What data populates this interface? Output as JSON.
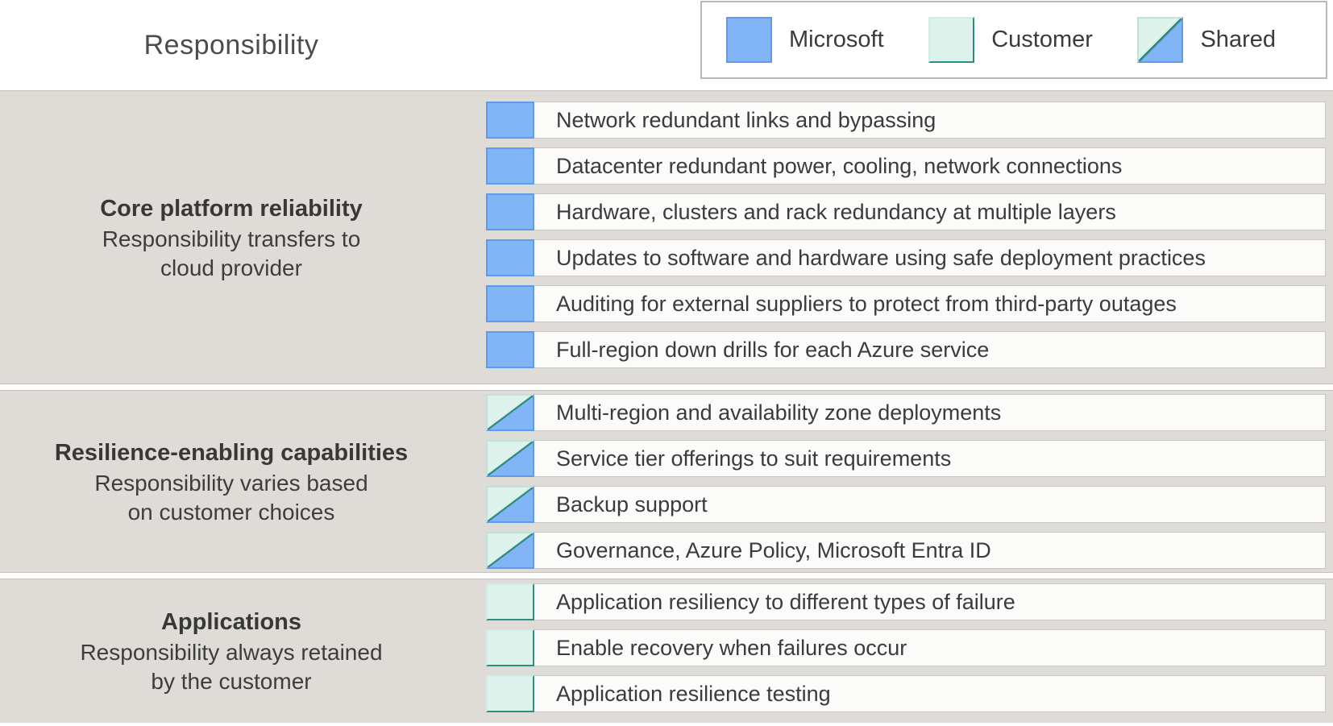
{
  "title": "Responsibility",
  "legend": {
    "items": [
      {
        "label": "Microsoft",
        "type": "microsoft"
      },
      {
        "label": "Customer",
        "type": "customer"
      },
      {
        "label": "Shared",
        "type": "shared"
      }
    ]
  },
  "colors": {
    "microsoft": "#82b5f5",
    "microsoft_border": "#5e9bee",
    "customer": "#def2ec",
    "customer_border": "#2f8d80",
    "section_bg": "#dfdcd7",
    "section_edge": "#c6c3be",
    "row_bg": "#fbfbfa",
    "row_border": "#c9c7c3",
    "legend_border": "#b9b9b9",
    "text": "#3b3b3b",
    "title_text": "#4c4c4c"
  },
  "sections": [
    {
      "heading": "Core platform reliability",
      "subheading": "Responsibility transfers to\ncloud provider",
      "owner": "microsoft",
      "rows": [
        "Network redundant links and bypassing",
        "Datacenter redundant power, cooling, network connections",
        "Hardware, clusters and rack redundancy at multiple layers",
        "Updates to software and hardware using safe deployment practices",
        "Auditing for external suppliers to protect from third-party outages",
        "Full-region down drills for each Azure service"
      ]
    },
    {
      "heading": "Resilience-enabling capabilities",
      "subheading": "Responsibility varies based\non customer choices",
      "owner": "shared",
      "rows": [
        "Multi-region and availability zone deployments",
        "Service tier offerings to suit requirements",
        "Backup support",
        "Governance, Azure Policy, Microsoft Entra ID"
      ]
    },
    {
      "heading": "Applications",
      "subheading": "Responsibility always retained\nby the customer",
      "owner": "customer",
      "rows": [
        "Application resiliency to different types of failure",
        "Enable recovery when failures occur",
        "Application resilience testing"
      ]
    }
  ]
}
